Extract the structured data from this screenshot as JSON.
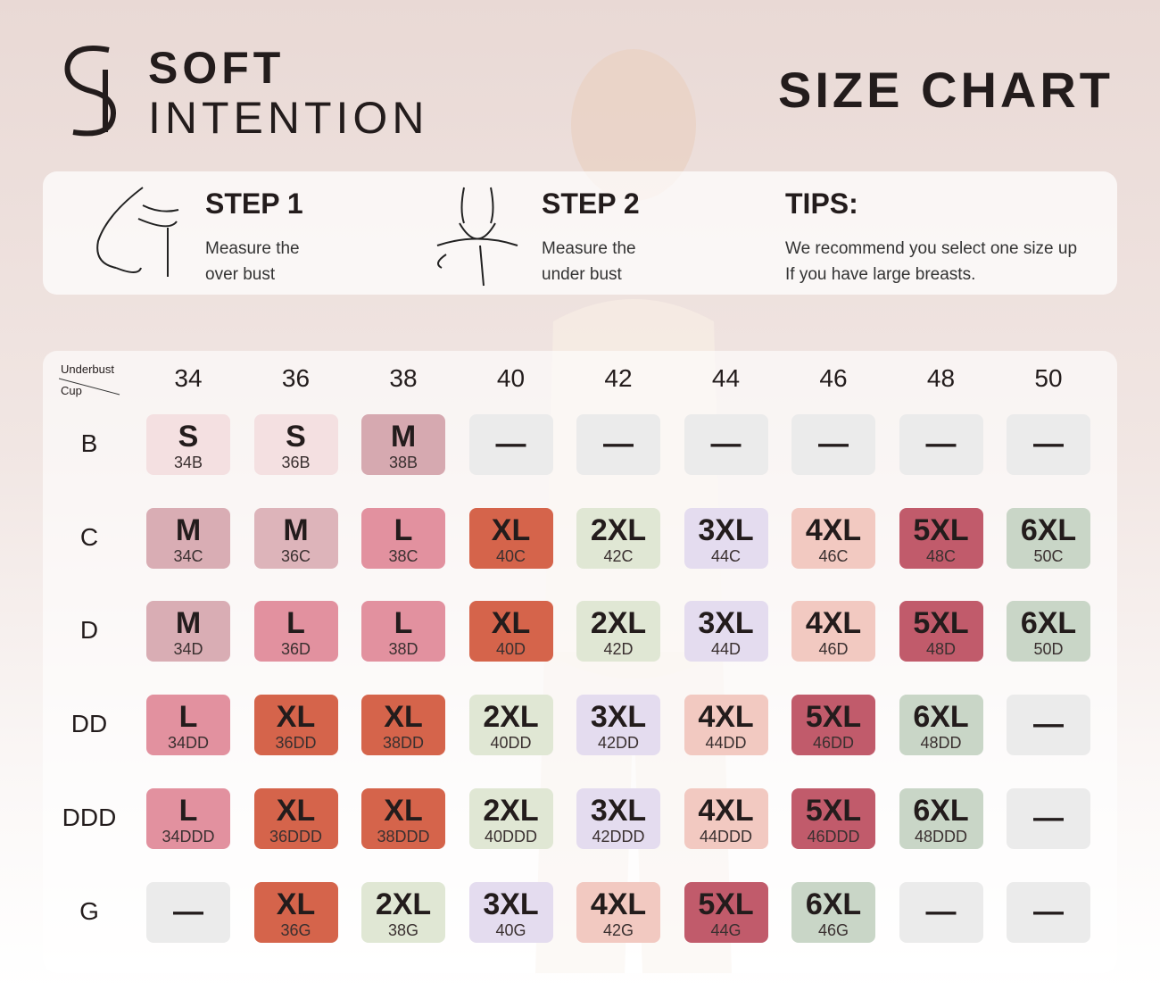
{
  "header": {
    "brand": [
      "SOFT",
      "INTENTION"
    ],
    "title": "SIZE CHART"
  },
  "steps": [
    {
      "title": "STEP 1",
      "lines": [
        "Measure the",
        "over bust"
      ]
    },
    {
      "title": "STEP 2",
      "lines": [
        "Measure the",
        "under bust"
      ]
    }
  ],
  "tips": {
    "title": "TIPS:",
    "lines": [
      "We recommend you select one size up",
      "If you have large breasts."
    ]
  },
  "table": {
    "corner": [
      "Underbust",
      "Cup"
    ],
    "columns": [
      "34",
      "36",
      "38",
      "40",
      "42",
      "44",
      "46",
      "48",
      "50"
    ],
    "rows": [
      {
        "cup": "B",
        "cells": [
          {
            "size": "S",
            "code": "34B",
            "color": "#f4e0e1"
          },
          {
            "size": "S",
            "code": "36B",
            "color": "#f4e0e1"
          },
          {
            "size": "M",
            "code": "38B",
            "color": "#d6a9b0"
          },
          {
            "size": "—",
            "color": "#ebebeb"
          },
          {
            "size": "—",
            "color": "#ebebeb"
          },
          {
            "size": "—",
            "color": "#ebebeb"
          },
          {
            "size": "—",
            "color": "#ebebeb"
          },
          {
            "size": "—",
            "color": "#ebebeb"
          },
          {
            "size": "—",
            "color": "#ebebeb"
          }
        ]
      },
      {
        "cup": "C",
        "cells": [
          {
            "size": "M",
            "code": "34C",
            "color": "#d9adb4"
          },
          {
            "size": "M",
            "code": "36C",
            "color": "#ddb4ba"
          },
          {
            "size": "L",
            "code": "38C",
            "color": "#e2919f"
          },
          {
            "size": "XL",
            "code": "40C",
            "color": "#d5644b"
          },
          {
            "size": "2XL",
            "code": "42C",
            "color": "#e0e7d4"
          },
          {
            "size": "3XL",
            "code": "44C",
            "color": "#e4dcef"
          },
          {
            "size": "4XL",
            "code": "46C",
            "color": "#f2c9c1"
          },
          {
            "size": "5XL",
            "code": "48C",
            "color": "#c15b6b"
          },
          {
            "size": "6XL",
            "code": "50C",
            "color": "#c9d6c7"
          }
        ]
      },
      {
        "cup": "D",
        "cells": [
          {
            "size": "M",
            "code": "34D",
            "color": "#d9adb4"
          },
          {
            "size": "L",
            "code": "36D",
            "color": "#e2919f"
          },
          {
            "size": "L",
            "code": "38D",
            "color": "#e2919f"
          },
          {
            "size": "XL",
            "code": "40D",
            "color": "#d5644b"
          },
          {
            "size": "2XL",
            "code": "42D",
            "color": "#e0e7d4"
          },
          {
            "size": "3XL",
            "code": "44D",
            "color": "#e4dcef"
          },
          {
            "size": "4XL",
            "code": "46D",
            "color": "#f2c9c1"
          },
          {
            "size": "5XL",
            "code": "48D",
            "color": "#c15b6b"
          },
          {
            "size": "6XL",
            "code": "50D",
            "color": "#c9d6c7"
          }
        ]
      },
      {
        "cup": "DD",
        "cells": [
          {
            "size": "L",
            "code": "34DD",
            "color": "#e2919f"
          },
          {
            "size": "XL",
            "code": "36DD",
            "color": "#d5644b"
          },
          {
            "size": "XL",
            "code": "38DD",
            "color": "#d5644b"
          },
          {
            "size": "2XL",
            "code": "40DD",
            "color": "#e0e7d4"
          },
          {
            "size": "3XL",
            "code": "42DD",
            "color": "#e4dcef"
          },
          {
            "size": "4XL",
            "code": "44DD",
            "color": "#f2c9c1"
          },
          {
            "size": "5XL",
            "code": "46DD",
            "color": "#c15b6b"
          },
          {
            "size": "6XL",
            "code": "48DD",
            "color": "#c9d6c7"
          },
          {
            "size": "—",
            "color": "#ebebeb"
          }
        ]
      },
      {
        "cup": "DDD",
        "cells": [
          {
            "size": "L",
            "code": "34DDD",
            "color": "#e2919f"
          },
          {
            "size": "XL",
            "code": "36DDD",
            "color": "#d5644b"
          },
          {
            "size": "XL",
            "code": "38DDD",
            "color": "#d5644b"
          },
          {
            "size": "2XL",
            "code": "40DDD",
            "color": "#e0e7d4"
          },
          {
            "size": "3XL",
            "code": "42DDD",
            "color": "#e4dcef"
          },
          {
            "size": "4XL",
            "code": "44DDD",
            "color": "#f2c9c1"
          },
          {
            "size": "5XL",
            "code": "46DDD",
            "color": "#c15b6b"
          },
          {
            "size": "6XL",
            "code": "48DDD",
            "color": "#c9d6c7"
          },
          {
            "size": "—",
            "color": "#ebebeb"
          }
        ]
      },
      {
        "cup": "G",
        "cells": [
          {
            "size": "—",
            "color": "#ebebeb"
          },
          {
            "size": "XL",
            "code": "36G",
            "color": "#d5644b"
          },
          {
            "size": "2XL",
            "code": "38G",
            "color": "#e0e7d4"
          },
          {
            "size": "3XL",
            "code": "40G",
            "color": "#e4dcef"
          },
          {
            "size": "4XL",
            "code": "42G",
            "color": "#f2c9c1"
          },
          {
            "size": "5XL",
            "code": "44G",
            "color": "#c15b6b"
          },
          {
            "size": "6XL",
            "code": "46G",
            "color": "#c9d6c7"
          },
          {
            "size": "—",
            "color": "#ebebeb"
          },
          {
            "size": "—",
            "color": "#ebebeb"
          }
        ]
      }
    ]
  }
}
